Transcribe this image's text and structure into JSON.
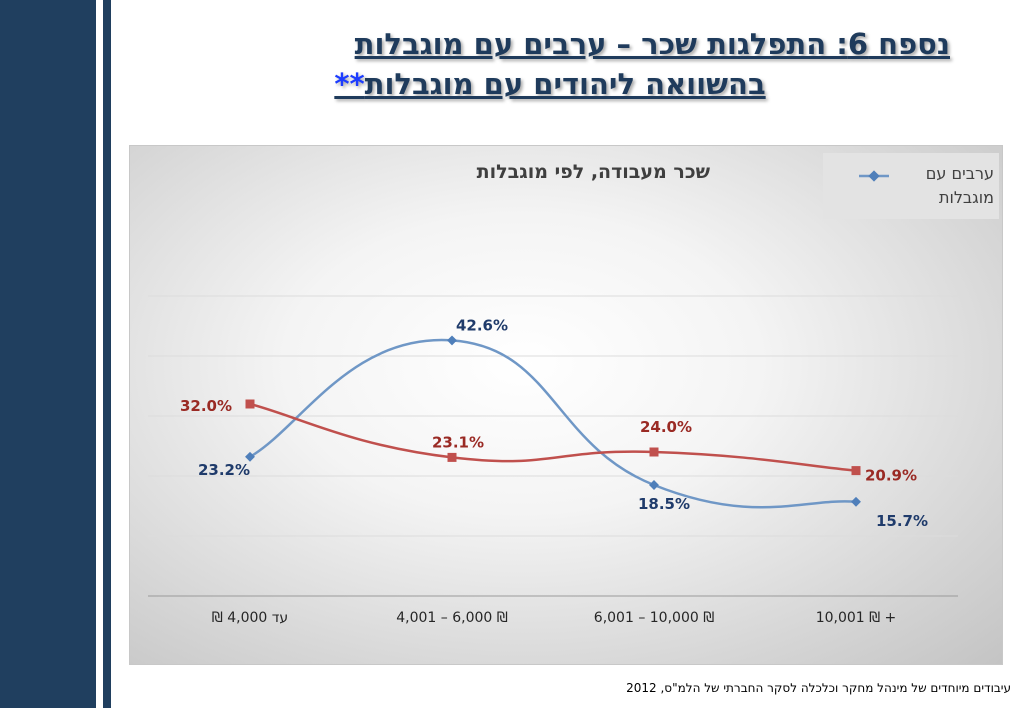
{
  "slide": {
    "title_line1": "נספח 6: התפלגות שכר – ערבים עם מוגבלות",
    "title_line2": "בהשוואה ליהודים עם מוגבלות",
    "title_stars": "**",
    "footer": "עיבודים מיוחדים של מינהל מחקר וכלכלה  לסקר החברתי של הלמ\"ס,   2012"
  },
  "colors": {
    "sidebar": "#203f5f",
    "series_blue": "#6f97c6",
    "series_red": "#c0504d",
    "label_blue": "#1f3b6b",
    "label_red": "#9a2a24"
  },
  "chart_data": {
    "type": "line",
    "title": "שכר מעבודה, לפי מוגבלות",
    "categories": [
      "עד 4,000 ₪",
      "4,001 – 6,000 ₪",
      "6,001 – 10,000 ₪",
      "10,001 ₪ +"
    ],
    "series": [
      {
        "name": "ערבים עם מוגבלות",
        "marker": "diamond",
        "values": [
          23.2,
          42.6,
          18.5,
          15.7
        ],
        "labels": [
          "23.2%",
          "42.6%",
          "18.5%",
          "15.7%"
        ]
      },
      {
        "marker": "square",
        "values": [
          32.0,
          23.1,
          24.0,
          20.9
        ],
        "labels": [
          "32.0%",
          "23.1%",
          "24.0%",
          "20.9%"
        ]
      }
    ],
    "ylim": [
      0,
      50
    ],
    "grid": true,
    "legend": "top-right"
  }
}
